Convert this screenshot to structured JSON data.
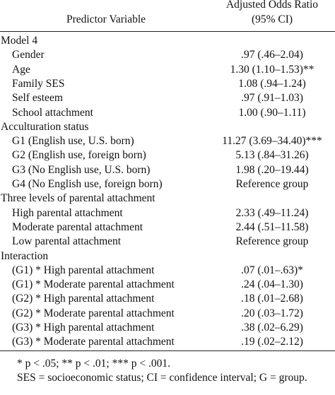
{
  "table": {
    "header": {
      "variable": "Predictor Variable",
      "ratio": "Adjusted Odds Ratio",
      "ci": "(95% CI)"
    },
    "sections": [
      {
        "title": "Model 4",
        "rows": [
          {
            "label": "Gender",
            "value": ".97 (.46–2.04)"
          },
          {
            "label": "Age",
            "value": "1.30 (1.10–1.53)**"
          },
          {
            "label": "Family SES",
            "value": "1.08 (.94–1.24)"
          },
          {
            "label": "Self esteem",
            "value": ".97 (.91–1.03)"
          },
          {
            "label": "School attachment",
            "value": "1.00 (.90–1.11)"
          }
        ]
      },
      {
        "title": "Acculturation status",
        "rows": [
          {
            "label": "G1 (English use, U.S. born)",
            "value": "11.27 (3.69–34.40)***"
          },
          {
            "label": "G2 (English use, foreign born)",
            "value": "5.13 (.84–31.26)"
          },
          {
            "label": "G3 (No English use, U.S. born)",
            "value": "1.98 (.20–19.44)"
          },
          {
            "label": "G4 (No English use, foreign born)",
            "value": "Reference group"
          }
        ]
      },
      {
        "title": "Three levels of parental attachment",
        "rows": [
          {
            "label": "High parental attachment",
            "value": "2.33 (.49–11.24)"
          },
          {
            "label": "Moderate parental attachment",
            "value": "2.44 (.51–11.58)"
          },
          {
            "label": "Low parental attachment",
            "value": "Reference group"
          }
        ]
      },
      {
        "title": "Interaction",
        "rows": [
          {
            "label": "(G1) * High parental attachment",
            "value": ".07 (.01–.63)*"
          },
          {
            "label": "(G1) * Moderate parental attachment",
            "value": ".24 (.04–1.30)"
          },
          {
            "label": "(G2) * High parental attachment",
            "value": ".18 (.01–2.68)"
          },
          {
            "label": "(G2) * Moderate parental attachment",
            "value": ".20 (.03–1.72)"
          },
          {
            "label": "(G3) * High parental attachment",
            "value": ".38 (.02–6.29)"
          },
          {
            "label": "(G3) * Moderate parental attachment",
            "value": ".19 (.02–2.12)"
          }
        ]
      }
    ],
    "footnotes": [
      "* p < .05; ** p < .01; *** p < .001.",
      "SES = socioeconomic status; CI = confidence interval; G = group."
    ]
  }
}
